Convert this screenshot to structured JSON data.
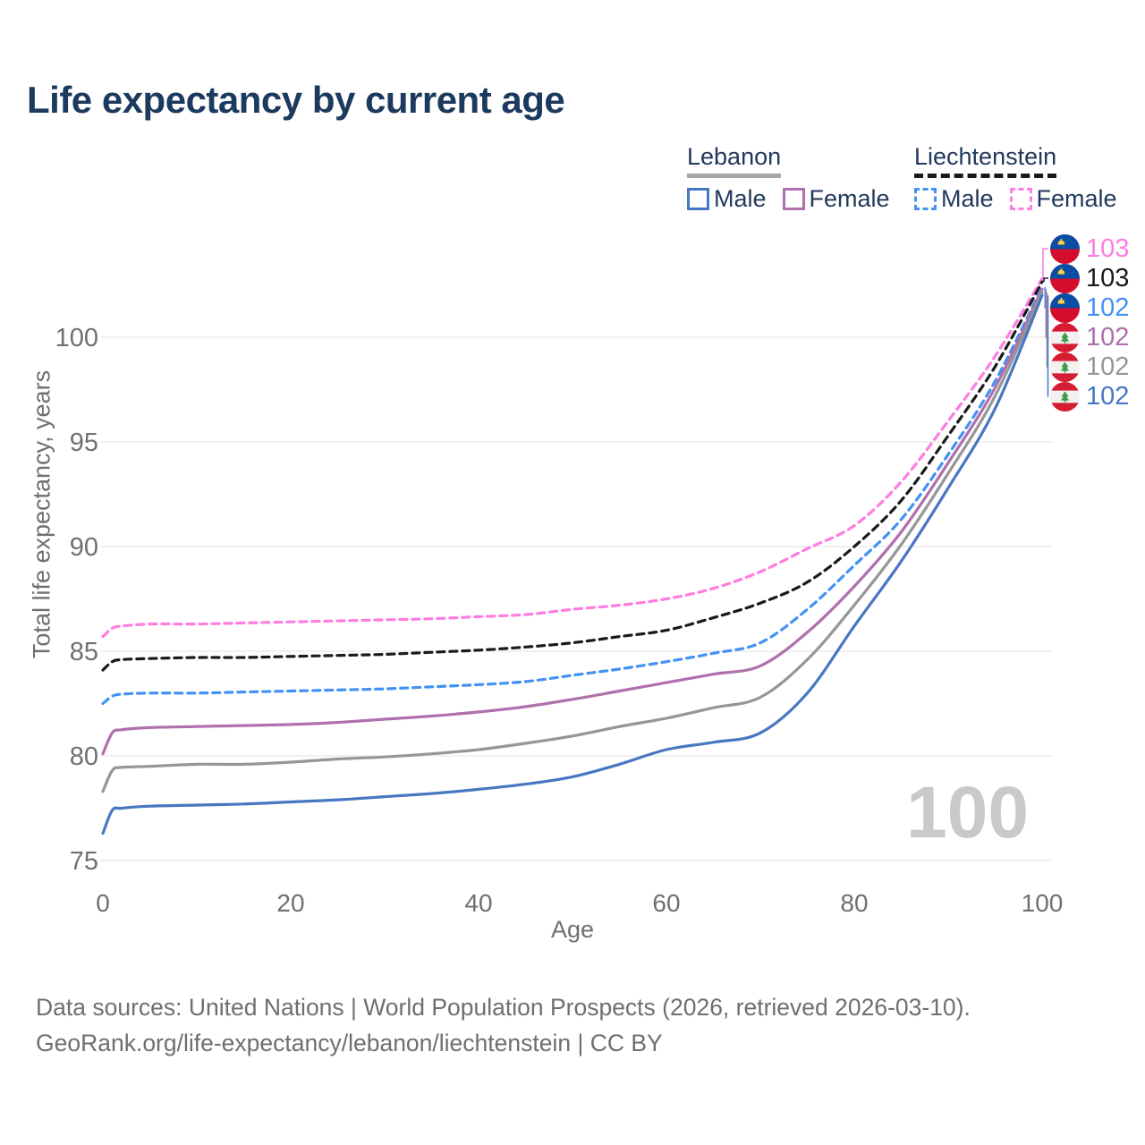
{
  "title": "Life expectancy by current age",
  "legend": {
    "groups": [
      {
        "id": "lebanon",
        "title": "Lebanon",
        "line_style": "solid",
        "underline_color": "#a6a6a6",
        "items": [
          {
            "label": "Male",
            "color": "#4877c2"
          },
          {
            "label": "Female",
            "color": "#b06fad"
          }
        ]
      },
      {
        "id": "liechtenstein",
        "title": "Liechtenstein",
        "line_style": "dashed",
        "underline_color": "#1a1a1a",
        "items": [
          {
            "label": "Male",
            "color": "#4292f4"
          },
          {
            "label": "Female",
            "color": "#ff7ce0"
          }
        ]
      }
    ]
  },
  "chart_data": {
    "type": "line",
    "title": "Life expectancy by current age",
    "xlabel": "Age",
    "ylabel": "Total life expectancy, years",
    "xlim": [
      0,
      100
    ],
    "ylim": [
      75,
      103.5
    ],
    "xticks": [
      0,
      20,
      40,
      60,
      80,
      100
    ],
    "yticks": [
      75,
      80,
      85,
      90,
      95,
      100
    ],
    "grid": "horizontal",
    "legend_position": "top-right",
    "watermark": "100",
    "x": [
      0,
      1,
      2,
      5,
      10,
      15,
      20,
      25,
      30,
      35,
      40,
      45,
      50,
      55,
      60,
      65,
      70,
      75,
      80,
      85,
      90,
      95,
      100
    ],
    "series": [
      {
        "name": "Liechtenstein Female",
        "country": "liechtenstein",
        "sex": "female",
        "line": "dashed",
        "color": "#ff7ce0",
        "end_value": 103,
        "values": [
          85.7,
          86.1,
          86.2,
          86.3,
          86.3,
          86.35,
          86.4,
          86.45,
          86.5,
          86.55,
          86.65,
          86.75,
          87.0,
          87.2,
          87.5,
          88.0,
          88.8,
          89.9,
          91.0,
          93.1,
          96.0,
          99.1,
          102.8
        ]
      },
      {
        "name": "Liechtenstein Both sexes",
        "country": "liechtenstein",
        "sex": "both",
        "line": "dashed",
        "color": "#1a1a1a",
        "end_value": 103,
        "values": [
          84.1,
          84.5,
          84.6,
          84.65,
          84.7,
          84.7,
          84.75,
          84.8,
          84.85,
          84.95,
          85.05,
          85.2,
          85.4,
          85.7,
          86.0,
          86.6,
          87.3,
          88.3,
          90.0,
          92.2,
          95.3,
          98.6,
          102.65
        ]
      },
      {
        "name": "Liechtenstein Male",
        "country": "liechtenstein",
        "sex": "male",
        "line": "dashed",
        "color": "#4292f4",
        "end_value": 102,
        "values": [
          82.5,
          82.85,
          82.95,
          83.0,
          83.0,
          83.05,
          83.1,
          83.15,
          83.2,
          83.3,
          83.4,
          83.55,
          83.85,
          84.15,
          84.5,
          84.9,
          85.4,
          87.0,
          89.1,
          91.3,
          94.4,
          97.9,
          102.4
        ]
      },
      {
        "name": "Lebanon Female",
        "country": "lebanon",
        "sex": "female",
        "line": "solid",
        "color": "#b06fad",
        "end_value": 102,
        "values": [
          80.1,
          81.1,
          81.25,
          81.35,
          81.4,
          81.45,
          81.5,
          81.6,
          81.75,
          81.9,
          82.1,
          82.35,
          82.7,
          83.1,
          83.5,
          83.9,
          84.3,
          85.9,
          88.1,
          90.7,
          94.0,
          97.6,
          102.3
        ]
      },
      {
        "name": "Lebanon Both sexes",
        "country": "lebanon",
        "sex": "both",
        "line": "solid",
        "color": "#969696",
        "end_value": 102,
        "values": [
          78.3,
          79.3,
          79.45,
          79.5,
          79.6,
          79.6,
          79.7,
          79.85,
          79.95,
          80.1,
          80.3,
          80.6,
          80.95,
          81.4,
          81.8,
          82.3,
          82.8,
          84.6,
          87.2,
          90.1,
          93.5,
          97.2,
          102.15
        ]
      },
      {
        "name": "Lebanon Male",
        "country": "lebanon",
        "sex": "male",
        "line": "solid",
        "color": "#4877c2",
        "end_value": 102,
        "values": [
          76.3,
          77.4,
          77.5,
          77.6,
          77.65,
          77.7,
          77.8,
          77.9,
          78.05,
          78.2,
          78.4,
          78.65,
          79.0,
          79.6,
          80.3,
          80.65,
          81.1,
          83.0,
          86.2,
          89.3,
          92.8,
          96.6,
          102.0
        ]
      }
    ]
  },
  "end_labels": [
    {
      "flag": "liechtenstein",
      "value": "103",
      "color": "#ff7ce0"
    },
    {
      "flag": "liechtenstein",
      "value": "103",
      "color": "#1a1a1a"
    },
    {
      "flag": "liechtenstein",
      "value": "102",
      "color": "#4292f4"
    },
    {
      "flag": "lebanon",
      "value": "102",
      "color": "#b06fad"
    },
    {
      "flag": "lebanon",
      "value": "102",
      "color": "#969696"
    },
    {
      "flag": "lebanon",
      "value": "102",
      "color": "#4877c2"
    }
  ],
  "flag_colors": {
    "liechtenstein": {
      "blue": "#0a4da5",
      "red": "#d40d2c",
      "crown": "#ffd23f"
    },
    "lebanon": {
      "red": "#d61c33",
      "white": "#f2f1ef",
      "cedar": "#3a9c42"
    }
  },
  "footer": {
    "line1": "Data sources: United Nations | World Population Prospects (2026, retrieved 2026-03-10).",
    "line2": "GeoRank.org/life-expectancy/lebanon/liechtenstein | CC BY"
  }
}
